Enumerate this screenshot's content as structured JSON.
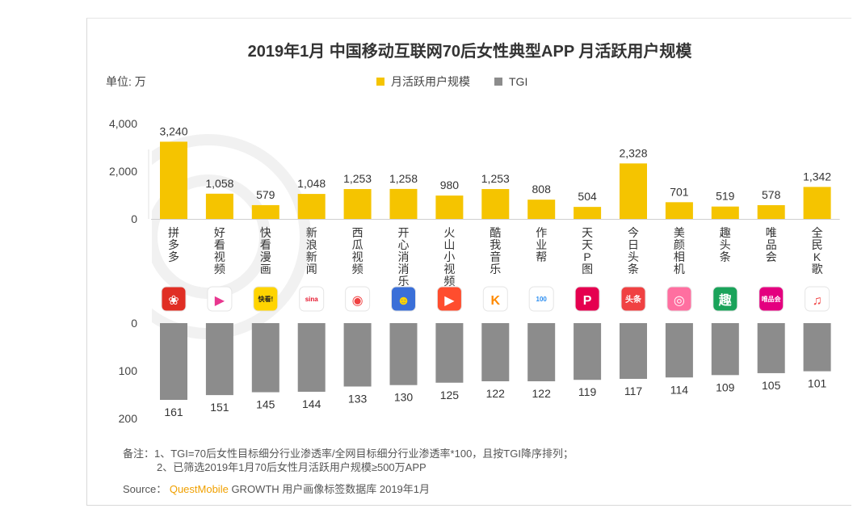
{
  "title": "2019年1月 中国移动互联网70后女性典型APP 月活跃用户规模",
  "unit": "单位: 万",
  "legend": [
    {
      "label": "月活跃用户规模",
      "color": "#f5c400"
    },
    {
      "label": "TGI",
      "color": "#8c8c8c"
    }
  ],
  "notes": {
    "line1": "备注：1、TGI=70后女性目标细分行业渗透率/全网目标细分行业渗透率*100，且按TGI降序排列；",
    "line2": "2、已筛选2019年1月70后女性月活跃用户规模≥500万APP"
  },
  "source": {
    "prefix": "Source：",
    "brand": "QuestMobile",
    "suffix": "GROWTH 用户画像标签数据库 2019年1月"
  },
  "chart_data": {
    "type": "bar",
    "title": "2019年1月 中国移动互联网70后女性典型APP 月活跃用户规模",
    "categories": [
      "拼多多",
      "好看视频",
      "快看漫画",
      "新浪新闻",
      "西瓜视频",
      "开心消消乐",
      "火山小视频",
      "酷我音乐",
      "作业帮",
      "天天P图",
      "今日头条",
      "美颜相机",
      "趣头条",
      "唯品会",
      "全民K歌"
    ],
    "category_labels": [
      "拼\n多\n多",
      "好\n看\n视\n频",
      "快\n看\n漫\n画",
      "新\n浪\n新\n闻",
      "西\n瓜\n视\n频",
      "开\n心\n消\n消\n乐",
      "火\n山\n小\n视\n频",
      "酷\n我\n音\n乐",
      "作\n业\n帮",
      "天\n天\nP\n图",
      "今\n日\n头\n条",
      "美\n颜\n相\n机",
      "趣\n头\n条",
      "唯\n品\n会",
      "全\n民\nK\n歌"
    ],
    "series": [
      {
        "name": "月活跃用户规模",
        "color": "#f5c400",
        "values": [
          3240,
          1058,
          579,
          1048,
          1253,
          1258,
          980,
          1253,
          808,
          504,
          2328,
          701,
          519,
          578,
          1342
        ],
        "labels": [
          "3,240",
          "1,058",
          "579",
          "1,048",
          "1,253",
          "1,258",
          "980",
          "1,253",
          "808",
          "504",
          "2,328",
          "701",
          "519",
          "578",
          "1,342"
        ]
      },
      {
        "name": "TGI",
        "color": "#8c8c8c",
        "values": [
          161,
          151,
          145,
          144,
          133,
          130,
          125,
          122,
          122,
          119,
          117,
          114,
          109,
          105,
          101
        ],
        "labels": [
          "161",
          "151",
          "145",
          "144",
          "133",
          "130",
          "125",
          "122",
          "122",
          "119",
          "117",
          "114",
          "109",
          "105",
          "101"
        ]
      }
    ],
    "top_axis": {
      "ylim": [
        0,
        4000
      ],
      "ticks": [
        "4,000",
        "2,000",
        "0"
      ],
      "tick_values": [
        4000,
        2000,
        0
      ]
    },
    "bottom_axis": {
      "ylim": [
        0,
        200
      ],
      "ticks": [
        "0",
        "100",
        "200"
      ],
      "tick_values": [
        0,
        100,
        200
      ],
      "inverted": true
    },
    "icons": [
      {
        "name": "pinduoduo-icon",
        "bg": "#e02e24",
        "glyph": "❀",
        "fg": "#ffffff"
      },
      {
        "name": "haokan-icon",
        "bg": "#ffffff",
        "glyph": "▶",
        "fg": "#e8368f"
      },
      {
        "name": "kuaikan-icon",
        "bg": "#ffd400",
        "glyph": "快看!",
        "fg": "#222222"
      },
      {
        "name": "sina-icon",
        "bg": "#ffffff",
        "glyph": "sina",
        "fg": "#e6162d"
      },
      {
        "name": "xigua-icon",
        "bg": "#ffffff",
        "glyph": "◉",
        "fg": "#f04142"
      },
      {
        "name": "xiaoxiaole-icon",
        "bg": "#3a6fd8",
        "glyph": "☻",
        "fg": "#ffd400"
      },
      {
        "name": "huoshan-icon",
        "bg": "#ff4d2e",
        "glyph": "▶",
        "fg": "#ffffff"
      },
      {
        "name": "kuwo-icon",
        "bg": "#ffffff",
        "glyph": "K",
        "fg": "#ff8a00"
      },
      {
        "name": "zuoyebang-icon",
        "bg": "#ffffff",
        "glyph": "100",
        "fg": "#2a8df0"
      },
      {
        "name": "ptu-icon",
        "bg": "#e5004f",
        "glyph": "P",
        "fg": "#ffffff"
      },
      {
        "name": "toutiao-icon",
        "bg": "#f04142",
        "glyph": "头条",
        "fg": "#ffffff"
      },
      {
        "name": "meiyan-icon",
        "bg": "#ff6fa0",
        "glyph": "◎",
        "fg": "#ffffff"
      },
      {
        "name": "qutoutiao-icon",
        "bg": "#1aa35a",
        "glyph": "趣",
        "fg": "#ffffff"
      },
      {
        "name": "vipshop-icon",
        "bg": "#e4007f",
        "glyph": "唯品会",
        "fg": "#ffffff"
      },
      {
        "name": "kge-icon",
        "bg": "#ffffff",
        "glyph": "♫",
        "fg": "#f04142"
      }
    ]
  }
}
